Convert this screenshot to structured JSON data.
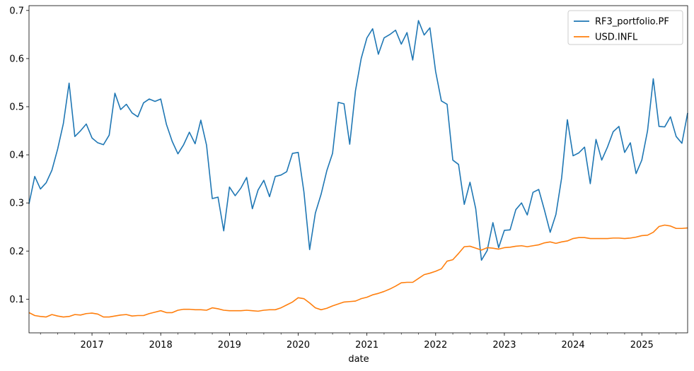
{
  "chart_data": {
    "type": "line",
    "title": "",
    "xlabel": "date",
    "ylabel": "",
    "ylim": [
      0.03,
      0.71
    ],
    "xlim": [
      "2016-02",
      "2025-09"
    ],
    "yticks": [
      "0.1",
      "0.2",
      "0.3",
      "0.4",
      "0.5",
      "0.6",
      "0.7"
    ],
    "xticks": [
      "2017",
      "2018",
      "2019",
      "2020",
      "2021",
      "2022",
      "2023",
      "2024",
      "2025"
    ],
    "legend_position": "top-right",
    "grid": false,
    "x_start": "2016-02",
    "series": [
      {
        "name": "RF3_portfolio.PF",
        "color": "#1f77b4",
        "values": [
          0.298,
          0.355,
          0.329,
          0.342,
          0.368,
          0.412,
          0.465,
          0.549,
          0.438,
          0.45,
          0.464,
          0.435,
          0.425,
          0.421,
          0.441,
          0.528,
          0.494,
          0.505,
          0.487,
          0.479,
          0.508,
          0.516,
          0.511,
          0.516,
          0.463,
          0.428,
          0.402,
          0.421,
          0.447,
          0.423,
          0.472,
          0.42,
          0.309,
          0.312,
          0.242,
          0.333,
          0.315,
          0.331,
          0.353,
          0.288,
          0.327,
          0.347,
          0.313,
          0.355,
          0.358,
          0.365,
          0.403,
          0.405,
          0.323,
          0.203,
          0.279,
          0.318,
          0.367,
          0.403,
          0.509,
          0.506,
          0.422,
          0.533,
          0.6,
          0.643,
          0.662,
          0.609,
          0.643,
          0.65,
          0.659,
          0.63,
          0.654,
          0.597,
          0.679,
          0.649,
          0.664,
          0.573,
          0.512,
          0.505,
          0.389,
          0.38,
          0.297,
          0.343,
          0.288,
          0.181,
          0.201,
          0.259,
          0.207,
          0.243,
          0.244,
          0.286,
          0.3,
          0.275,
          0.322,
          0.328,
          0.285,
          0.239,
          0.276,
          0.352,
          0.473,
          0.398,
          0.404,
          0.416,
          0.34,
          0.432,
          0.389,
          0.416,
          0.448,
          0.459,
          0.405,
          0.425,
          0.361,
          0.389,
          0.45,
          0.558,
          0.459,
          0.458,
          0.479,
          0.438,
          0.424,
          0.487
        ]
      },
      {
        "name": "USD.INFL",
        "color": "#ff7f0e",
        "values": [
          0.072,
          0.066,
          0.064,
          0.063,
          0.068,
          0.065,
          0.063,
          0.064,
          0.068,
          0.067,
          0.07,
          0.071,
          0.069,
          0.063,
          0.063,
          0.065,
          0.067,
          0.068,
          0.065,
          0.066,
          0.066,
          0.07,
          0.073,
          0.076,
          0.072,
          0.072,
          0.077,
          0.079,
          0.079,
          0.078,
          0.078,
          0.077,
          0.082,
          0.08,
          0.077,
          0.076,
          0.076,
          0.076,
          0.077,
          0.076,
          0.075,
          0.077,
          0.078,
          0.078,
          0.082,
          0.088,
          0.094,
          0.103,
          0.101,
          0.092,
          0.082,
          0.078,
          0.081,
          0.086,
          0.09,
          0.094,
          0.095,
          0.096,
          0.101,
          0.104,
          0.109,
          0.112,
          0.116,
          0.121,
          0.127,
          0.134,
          0.135,
          0.135,
          0.143,
          0.151,
          0.154,
          0.158,
          0.163,
          0.179,
          0.182,
          0.195,
          0.209,
          0.21,
          0.206,
          0.202,
          0.207,
          0.206,
          0.204,
          0.207,
          0.208,
          0.21,
          0.211,
          0.209,
          0.211,
          0.213,
          0.217,
          0.219,
          0.216,
          0.219,
          0.221,
          0.226,
          0.228,
          0.228,
          0.226,
          0.226,
          0.226,
          0.226,
          0.227,
          0.227,
          0.226,
          0.227,
          0.229,
          0.232,
          0.233,
          0.239,
          0.251,
          0.254,
          0.252,
          0.247,
          0.247,
          0.248
        ]
      }
    ]
  }
}
